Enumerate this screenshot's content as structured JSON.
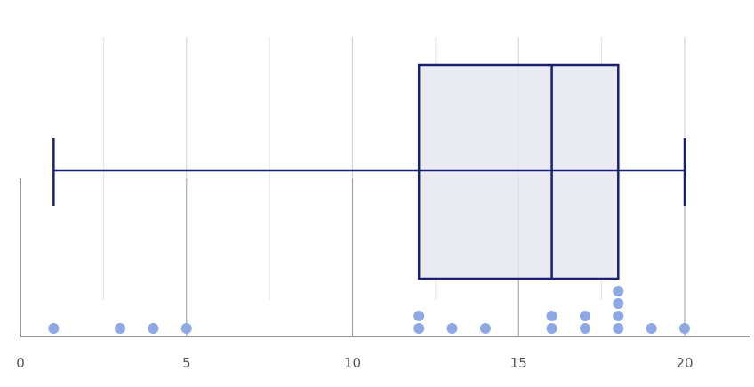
{
  "chart_data": {
    "type": "box",
    "xlim": [
      0,
      22
    ],
    "x_ticks": [
      "0",
      "5",
      "10",
      "15",
      "20"
    ],
    "x_tick_values": [
      0,
      5,
      10,
      15,
      20
    ],
    "minor_gridlines": [
      2.5,
      7.5,
      12.5,
      17.5
    ],
    "grid": true,
    "box": {
      "min": 1,
      "q1": 12,
      "median": 16,
      "q3": 18,
      "max": 20
    },
    "points": [
      1,
      3,
      4,
      5,
      12,
      12,
      13,
      14,
      16,
      16,
      17,
      17,
      18,
      18,
      18,
      18,
      19,
      20
    ],
    "colors": {
      "box_stroke": "#1a1f73",
      "box_fill": "#e6e7f0",
      "points": "#8ea8e3",
      "grid": "#e3e3e3",
      "axis": "#555555"
    }
  }
}
